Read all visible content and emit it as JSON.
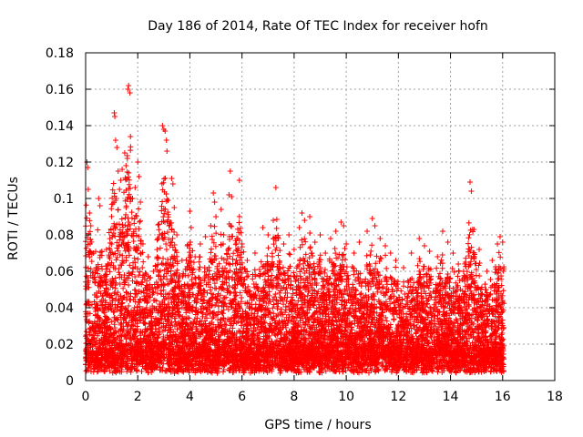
{
  "chart_data": {
    "type": "scatter",
    "title": "Day 186 of 2014, Rate Of TEC Index for receiver hofn",
    "xlabel": "GPS time / hours",
    "ylabel": "ROTI / TECUs",
    "xlim": [
      0,
      18
    ],
    "ylim": [
      0,
      0.18
    ],
    "xticks": [
      0,
      2,
      4,
      6,
      8,
      10,
      12,
      14,
      16,
      18
    ],
    "yticks": [
      0,
      0.02,
      0.04,
      0.06,
      0.08,
      0.1,
      0.12,
      0.14,
      0.16,
      0.18
    ],
    "xtick_labels": [
      "0",
      "2",
      "4",
      "6",
      "8",
      "10",
      "12",
      "14",
      "16",
      "18"
    ],
    "ytick_labels": [
      "0",
      "0.02",
      "0.04",
      "0.06",
      "0.08",
      "0.1",
      "0.12",
      "0.14",
      "0.16",
      "0.18"
    ],
    "grid": true,
    "marker": "+",
    "color": "#ff0000",
    "series": [
      {
        "name": "ROTI",
        "points": [
          [
            0.05,
            0.12
          ],
          [
            0.08,
            0.117
          ],
          [
            0.1,
            0.105
          ],
          [
            0.15,
            0.092
          ],
          [
            0.2,
            0.085
          ],
          [
            0.3,
            0.07
          ],
          [
            0.4,
            0.062
          ],
          [
            0.5,
            0.1
          ],
          [
            0.55,
            0.096
          ],
          [
            0.6,
            0.055
          ],
          [
            0.8,
            0.072
          ],
          [
            0.9,
            0.068
          ],
          [
            1.0,
            0.075
          ],
          [
            1.1,
            0.147
          ],
          [
            1.12,
            0.145
          ],
          [
            1.15,
            0.132
          ],
          [
            1.2,
            0.128
          ],
          [
            1.25,
            0.115
          ],
          [
            1.3,
            0.105
          ],
          [
            1.35,
            0.11
          ],
          [
            1.4,
            0.116
          ],
          [
            1.5,
            0.125
          ],
          [
            1.55,
            0.118
          ],
          [
            1.6,
            0.122
          ],
          [
            1.62,
            0.16
          ],
          [
            1.65,
            0.162
          ],
          [
            1.7,
            0.158
          ],
          [
            1.72,
            0.134
          ],
          [
            1.8,
            0.1
          ],
          [
            1.9,
            0.106
          ],
          [
            2.0,
            0.12
          ],
          [
            2.05,
            0.112
          ],
          [
            2.1,
            0.098
          ],
          [
            2.2,
            0.075
          ],
          [
            2.4,
            0.068
          ],
          [
            2.6,
            0.06
          ],
          [
            2.8,
            0.058
          ],
          [
            2.95,
            0.14
          ],
          [
            3.0,
            0.138
          ],
          [
            3.05,
            0.137
          ],
          [
            3.1,
            0.132
          ],
          [
            3.12,
            0.126
          ],
          [
            3.2,
            0.085
          ],
          [
            3.3,
            0.111
          ],
          [
            3.35,
            0.108
          ],
          [
            3.4,
            0.095
          ],
          [
            3.5,
            0.08
          ],
          [
            3.7,
            0.066
          ],
          [
            3.9,
            0.074
          ],
          [
            4.0,
            0.093
          ],
          [
            4.05,
            0.084
          ],
          [
            4.2,
            0.068
          ],
          [
            4.4,
            0.075
          ],
          [
            4.6,
            0.079
          ],
          [
            4.8,
            0.085
          ],
          [
            4.9,
            0.103
          ],
          [
            4.95,
            0.098
          ],
          [
            5.0,
            0.09
          ],
          [
            5.2,
            0.094
          ],
          [
            5.3,
            0.08
          ],
          [
            5.5,
            0.102
          ],
          [
            5.55,
            0.115
          ],
          [
            5.6,
            0.101
          ],
          [
            5.8,
            0.078
          ],
          [
            5.9,
            0.11
          ],
          [
            6.0,
            0.075
          ],
          [
            6.2,
            0.066
          ],
          [
            6.5,
            0.07
          ],
          [
            6.8,
            0.084
          ],
          [
            7.0,
            0.08
          ],
          [
            7.2,
            0.088
          ],
          [
            7.3,
            0.106
          ],
          [
            7.4,
            0.078
          ],
          [
            7.6,
            0.075
          ],
          [
            7.8,
            0.08
          ],
          [
            8.0,
            0.072
          ],
          [
            8.2,
            0.084
          ],
          [
            8.3,
            0.092
          ],
          [
            8.4,
            0.088
          ],
          [
            8.6,
            0.09
          ],
          [
            8.8,
            0.076
          ],
          [
            9.0,
            0.08
          ],
          [
            9.2,
            0.07
          ],
          [
            9.4,
            0.078
          ],
          [
            9.6,
            0.082
          ],
          [
            9.8,
            0.087
          ],
          [
            9.9,
            0.085
          ],
          [
            10.0,
            0.075
          ],
          [
            10.3,
            0.07
          ],
          [
            10.5,
            0.076
          ],
          [
            10.8,
            0.082
          ],
          [
            11.0,
            0.089
          ],
          [
            11.1,
            0.085
          ],
          [
            11.3,
            0.078
          ],
          [
            11.5,
            0.074
          ],
          [
            11.7,
            0.07
          ],
          [
            11.9,
            0.066
          ],
          [
            12.2,
            0.062
          ],
          [
            12.5,
            0.07
          ],
          [
            12.8,
            0.078
          ],
          [
            13.0,
            0.074
          ],
          [
            13.2,
            0.071
          ],
          [
            13.5,
            0.068
          ],
          [
            13.7,
            0.082
          ],
          [
            13.9,
            0.076
          ],
          [
            14.1,
            0.07
          ],
          [
            14.3,
            0.064
          ],
          [
            14.5,
            0.06
          ],
          [
            14.75,
            0.109
          ],
          [
            14.8,
            0.104
          ],
          [
            14.85,
            0.083
          ],
          [
            14.9,
            0.083
          ],
          [
            15.1,
            0.072
          ],
          [
            15.4,
            0.06
          ],
          [
            15.6,
            0.066
          ],
          [
            15.8,
            0.075
          ],
          [
            15.9,
            0.079
          ],
          [
            16.0,
            0.076
          ]
        ]
      }
    ]
  }
}
